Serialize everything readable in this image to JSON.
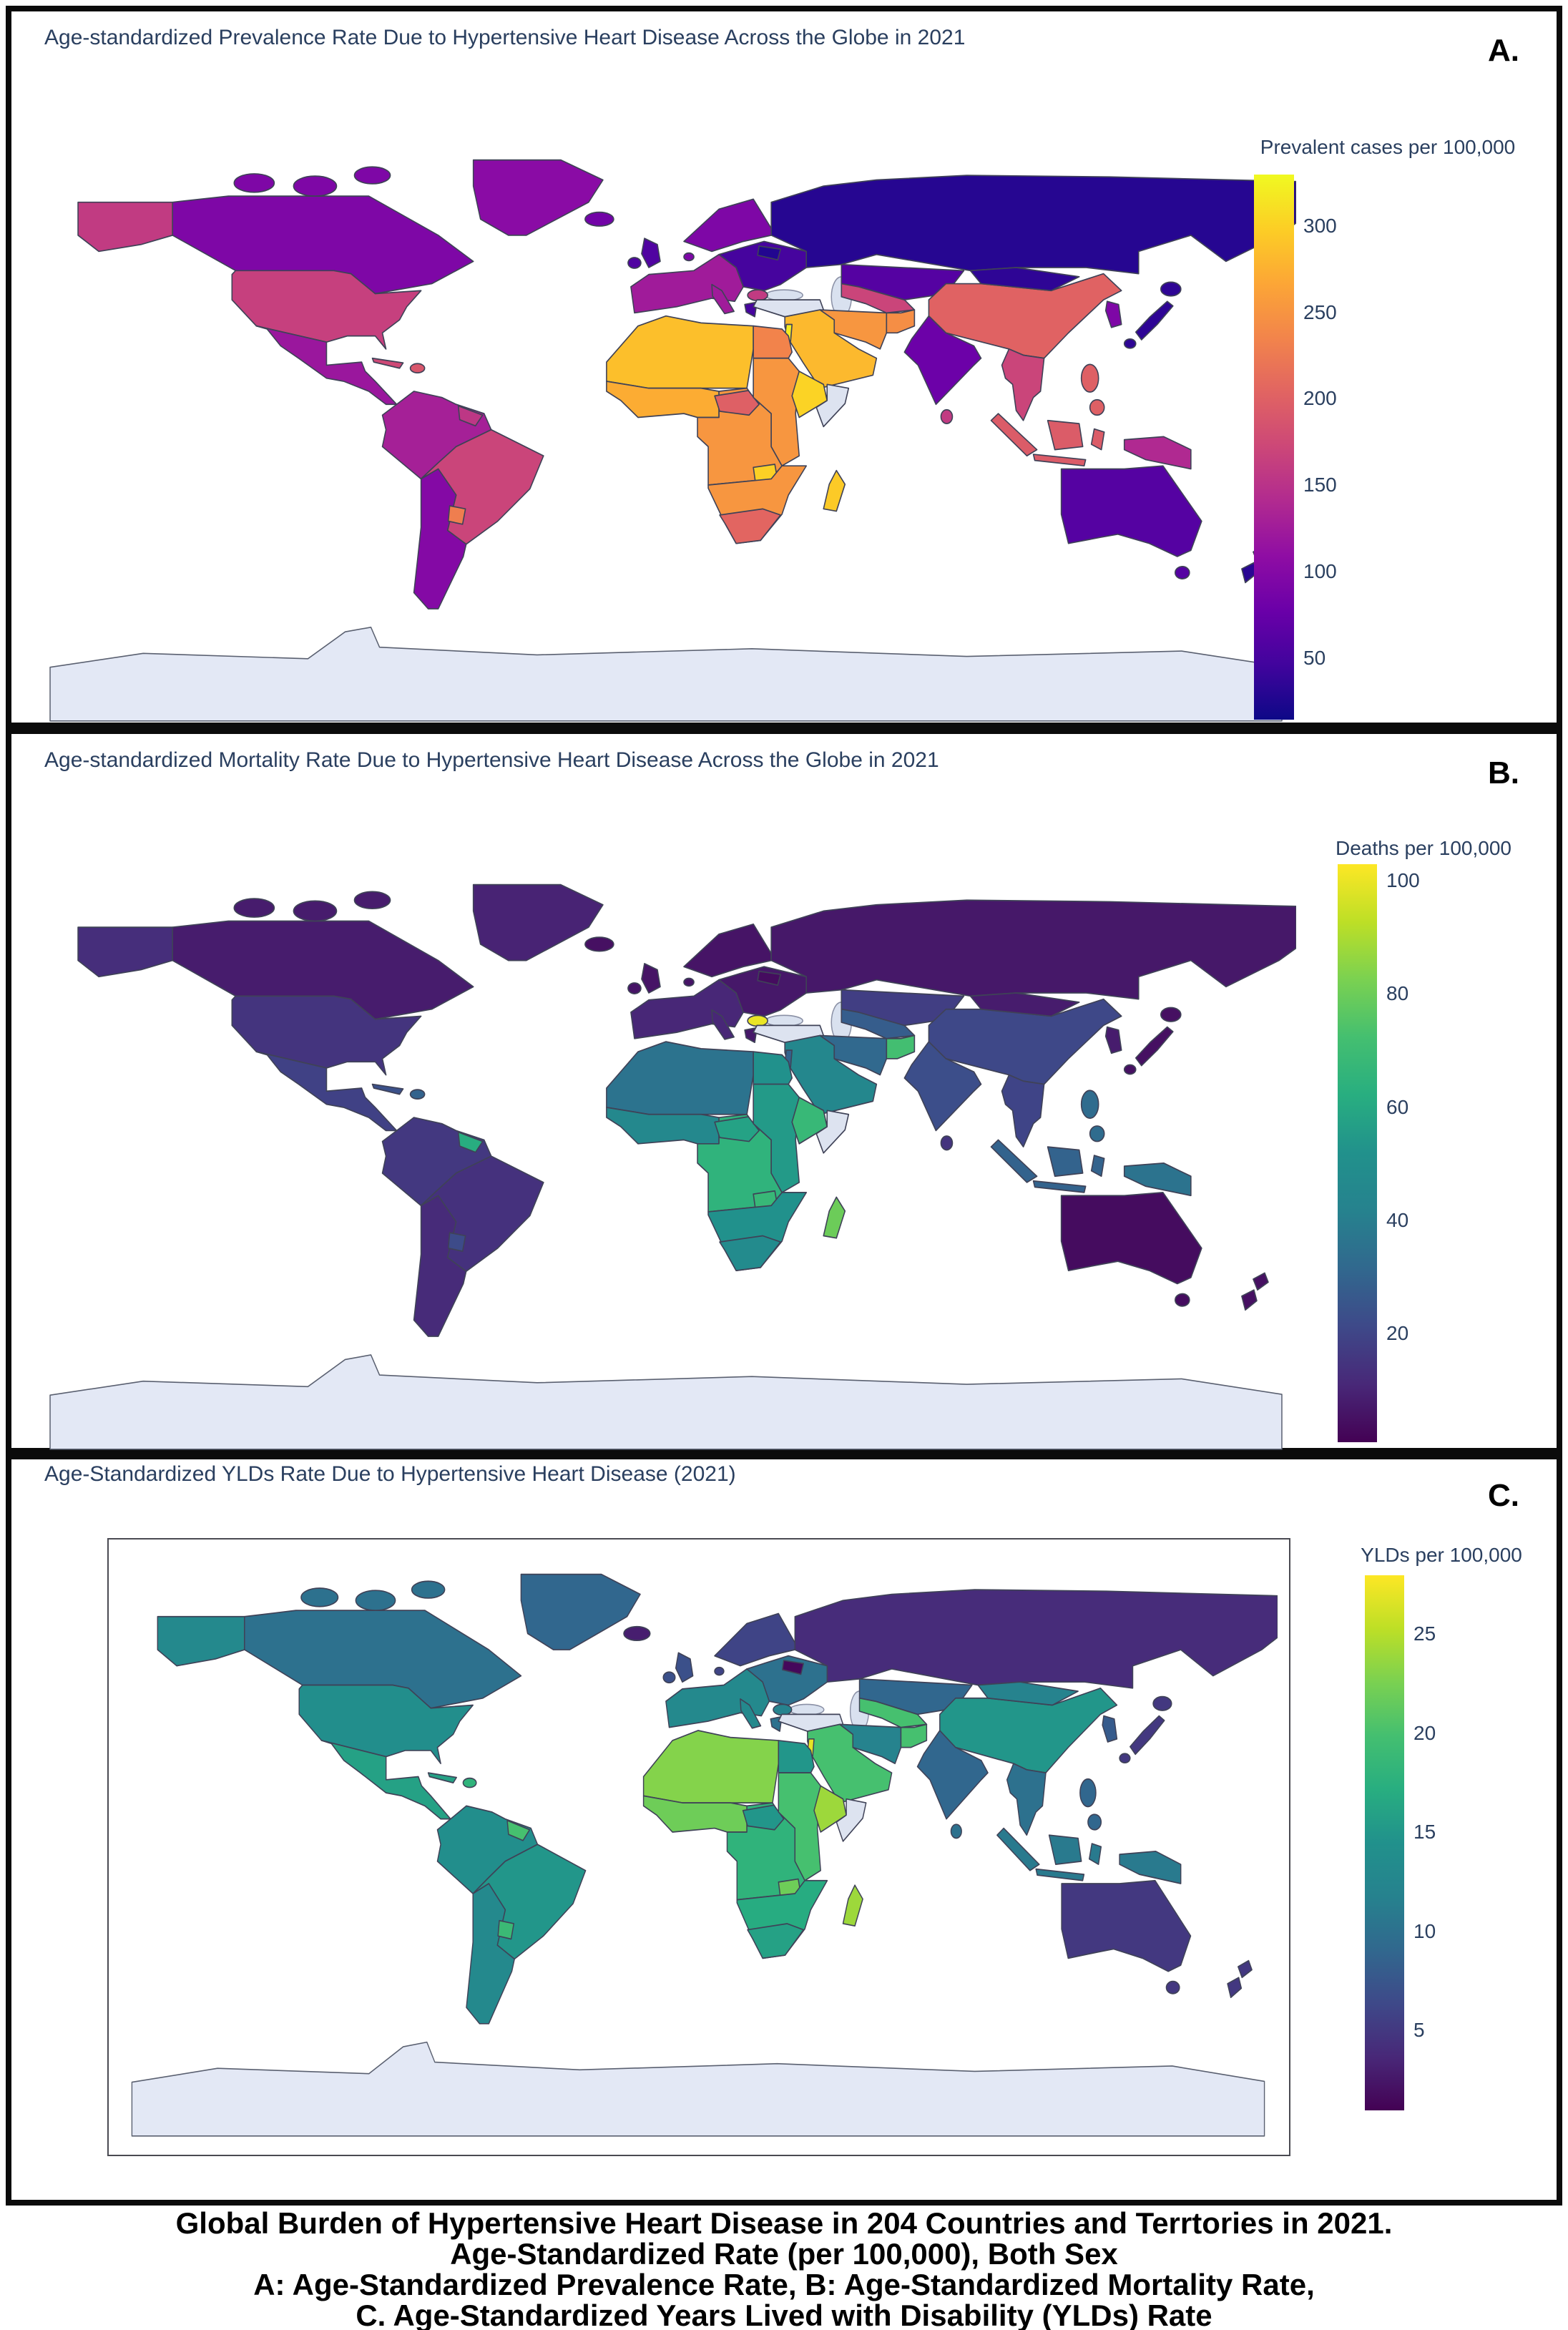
{
  "caption": {
    "line1": "Global Burden of Hypertensive Heart Disease in 204 Countries and Terrtories in 2021.",
    "line2": "Age-Standardized Rate (per 100,000), Both Sex",
    "line3": "A: Age-Standardized Prevalence Rate, B: Age-Standardized Mortality Rate,",
    "line4": "C. Age-Standardized Years Lived with Disability (YLDs) Rate"
  },
  "chart_data": {
    "type": "choropleth",
    "title_color": "#2a3f5f",
    "no_data_color": "#dde3f0",
    "antarctica_color": "#e3e8f5",
    "sea_color": "#d9e1ef",
    "panels": [
      {
        "id": "A",
        "label": "A.",
        "title": "Age-standardized Prevalence Rate Due to Hypertensive Heart Disease Across the Globe in 2021",
        "legend_title": "Prevalent cases per 100,000",
        "colormap": "plasma",
        "vmin": 15,
        "vmax": 330,
        "ticks": [
          300,
          250,
          200,
          150,
          100,
          50
        ],
        "values": {
          "alaska": 160,
          "canada": 95,
          "greenland": 105,
          "iceland": 85,
          "usa": 165,
          "mexico": 120,
          "cuba": 175,
          "hispaniola": 190,
          "sa_north": 130,
          "guyana": 155,
          "brazil": 170,
          "sa_south": 100,
          "paraguay": 230,
          "uk": 58,
          "scandinavia": 95,
          "west_europe": 125,
          "east_europe": 50,
          "belarus": 28,
          "bulgaria": 160,
          "russia": 30,
          "turkey": null,
          "israel": 320,
          "middle_east": 282,
          "iran": 252,
          "afghanistan": 245,
          "kazakhstan": 62,
          "central_asia": 170,
          "north_africa": 287,
          "egypt": 235,
          "west_africa": 272,
          "central_africa": 252,
          "car": 200,
          "zambia": 300,
          "east_africa": 252,
          "ethiopia": 302,
          "somalia": null,
          "southern_africa": 252,
          "south_africa": 205,
          "madagascar": 295,
          "india": 80,
          "sri_lanka": 160,
          "china": 202,
          "mongolia": 35,
          "korea": 95,
          "japan": 35,
          "se_asia": 170,
          "indonesia": 195,
          "philippines": 200,
          "png": 140,
          "australia": 62,
          "new_zealand": 32
        }
      },
      {
        "id": "B",
        "label": "B.",
        "title": "Age-standardized Mortality Rate Due to Hypertensive Heart Disease Across the Globe in 2021",
        "legend_title": "Deaths per 100,000",
        "colormap": "viridis",
        "vmin": 1,
        "vmax": 103,
        "ticks": [
          100,
          80,
          60,
          40,
          20
        ],
        "values": {
          "alaska": 13,
          "canada": 8,
          "greenland": 10,
          "iceland": 5,
          "usa": 15,
          "mexico": 19,
          "cuba": 24,
          "hispaniola": 30,
          "sa_north": 16,
          "guyana": 62,
          "brazil": 14,
          "sa_south": 12,
          "paraguay": 22,
          "uk": 6,
          "scandinavia": 6,
          "west_europe": 11,
          "east_europe": 7,
          "belarus": 4,
          "bulgaria": 100,
          "russia": 7,
          "turkey": null,
          "israel": 30,
          "middle_east": 45,
          "iran": 32,
          "afghanistan": 72,
          "kazakhstan": 18,
          "central_asia": 28,
          "north_africa": 36,
          "egypt": 52,
          "west_africa": 46,
          "central_africa": 65,
          "car": 58,
          "zambia": 68,
          "east_africa": 55,
          "ethiopia": 68,
          "somalia": null,
          "southern_africa": 52,
          "south_africa": 48,
          "madagascar": 80,
          "india": 23,
          "sri_lanka": 15,
          "china": 21,
          "mongolia": 8,
          "korea": 8,
          "japan": 5,
          "se_asia": 20,
          "indonesia": 30,
          "philippines": 33,
          "png": 36,
          "australia": 4,
          "new_zealand": 5
        }
      },
      {
        "id": "C",
        "label": "C.",
        "title": "Age-Standardized YLDs Rate Due to Hypertensive Heart Disease (2021)",
        "legend_title": "YLDs per 100,000",
        "colormap": "viridis",
        "vmin": 1,
        "vmax": 28,
        "ticks": [
          25,
          20,
          15,
          10,
          5
        ],
        "values": {
          "alaska": 13,
          "canada": 10,
          "greenland": 9,
          "iceland": 3,
          "usa": 14,
          "mexico": 16,
          "cuba": 16,
          "hispaniola": 18,
          "sa_north": 14,
          "guyana": 20,
          "brazil": 15,
          "sa_south": 13,
          "paraguay": 19,
          "uk": 7,
          "scandinavia": 6,
          "west_europe": 13,
          "east_europe": 10,
          "belarus": 1.5,
          "bulgaria": 12,
          "russia": 4,
          "turkey": null,
          "israel": 27,
          "middle_east": 20,
          "iran": 12,
          "afghanistan": 20,
          "kazakhstan": 9,
          "central_asia": 20,
          "north_africa": 23,
          "egypt": 15,
          "west_africa": 22,
          "central_africa": 18,
          "car": 15,
          "zambia": 22,
          "east_africa": 20,
          "ethiopia": 24,
          "somalia": null,
          "southern_africa": 17,
          "south_africa": 16,
          "madagascar": 24,
          "india": 9,
          "sri_lanka": 10,
          "china": 15,
          "mongolia": 12,
          "korea": 8,
          "japan": 5,
          "se_asia": 10,
          "indonesia": 11,
          "philippines": 9,
          "png": 11,
          "australia": 5,
          "new_zealand": 5
        }
      }
    ]
  }
}
